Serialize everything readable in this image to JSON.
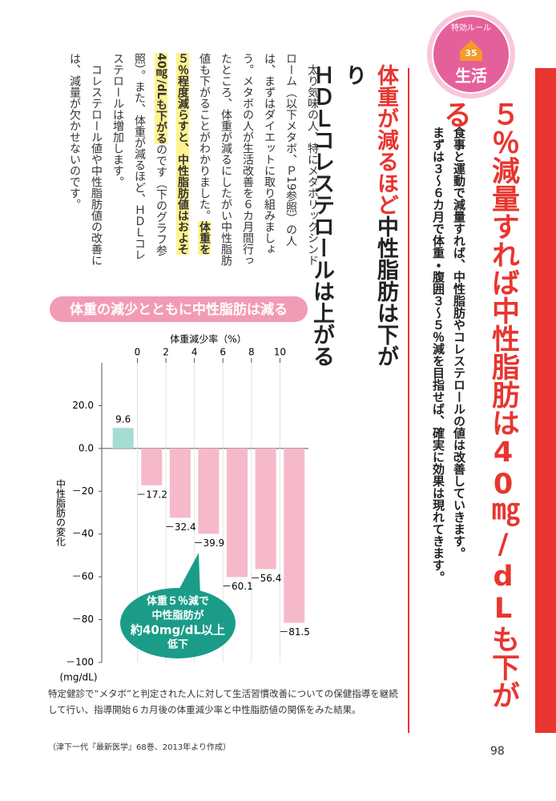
{
  "badge": {
    "label": "特効ルール",
    "number": "35",
    "category": "生活"
  },
  "title": "５％減量すれば中性脂肪は40㎎/dLも下がる",
  "lead": [
    "食事と運動で減量すれば、中性脂肪やコレステロールの値は改善していきます。",
    "まずは３～６カ月で体重・腹囲３～５％減を目指せば、確実に効果は現れてきます。"
  ],
  "heading": {
    "accent": "体重が減るほど",
    "rest": "中性脂肪は下がり",
    "line2": "ＨＤＬコレステロールは上がる"
  },
  "body": [
    [
      {
        "text": "太り気味の人、特にメタボリックシンドローム（以下メタボ、Ｐ19参照）の人は、まずはダイエットに取り組みましょう。メタボの人が生活改善を６カ月間行ったところ、体重が減るにしたがい中性脂肪値も下がることがわかりました。",
        "highlight": false
      },
      {
        "text": "体重を５％程度減らすと、中性脂肪値はおよそ40㎎/dLも下がる",
        "highlight": true
      },
      {
        "text": "のです（下のグラフ参照）。また、体重が減るほど、ＨＤＬコレステロールは増加します。",
        "highlight": false
      }
    ],
    [
      {
        "text": "コレステロール値や中性脂肪値の改善には、減量が欠かせないのです。",
        "highlight": false
      }
    ]
  ],
  "chart_data": {
    "type": "bar",
    "title": "体重の減少とともに中性脂肪は減る",
    "x_label": "体重減少率（%）",
    "y_label": "中性脂肪の変化",
    "y_unit": "(mg/dL)",
    "x": [
      -1,
      1,
      3,
      5,
      7,
      9,
      11
    ],
    "values": [
      9.6,
      -17.2,
      -32.4,
      -39.9,
      -60.1,
      -56.4,
      -81.5
    ],
    "value_labels": [
      "9.6",
      "－17.2",
      "－32.4",
      "－39.9",
      "－60.1",
      "－56.4",
      "－81.5"
    ],
    "colors": [
      "#a6ddd2",
      "#f6b9ca",
      "#f6b9ca",
      "#f6b9ca",
      "#f6b9ca",
      "#f6b9ca",
      "#f6b9ca"
    ],
    "xlim": [
      -2.5,
      12
    ],
    "xticks": [
      0,
      2,
      4,
      6,
      8,
      10
    ],
    "ylim": [
      -100,
      40
    ],
    "yticks": [
      {
        "value": 20,
        "label": "20.0"
      },
      {
        "value": 0,
        "label": "0.0"
      },
      {
        "value": -20,
        "label": "－20"
      },
      {
        "value": -40,
        "label": "－40"
      },
      {
        "value": -60,
        "label": "－60"
      },
      {
        "value": -80,
        "label": "－80"
      },
      {
        "value": -100,
        "label": "－100"
      }
    ],
    "callout": [
      "体重５％減で",
      "中性脂肪が",
      "約40mg/dL以上",
      "低下"
    ]
  },
  "caption": "特定健診で“メタボ”と判定された人に対して生活習慣改善についての保健指導を継続して行い、指導開始６カ月後の体重減少率と中性脂肪値の関係をみた結果。",
  "source": "（津下一代『最新医学』68巻、2013年より作成）",
  "page_number": "98"
}
